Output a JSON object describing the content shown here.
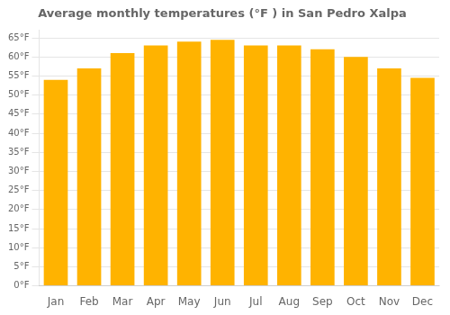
{
  "chart_data": {
    "type": "bar",
    "title": "Average monthly temperatures (°F ) in San Pedro Xalpa",
    "categories": [
      "Jan",
      "Feb",
      "Mar",
      "Apr",
      "May",
      "Jun",
      "Jul",
      "Aug",
      "Sep",
      "Oct",
      "Nov",
      "Dec"
    ],
    "values": [
      54,
      57,
      61,
      63,
      64,
      64.5,
      63,
      63,
      62,
      60,
      57,
      54.5
    ],
    "color": "#FFB300",
    "ylim": [
      0,
      67
    ],
    "yticks": [
      {
        "value": 0,
        "label": "0°F"
      },
      {
        "value": 5,
        "label": "5°F"
      },
      {
        "value": 10,
        "label": "10°F"
      },
      {
        "value": 15,
        "label": "15°F"
      },
      {
        "value": 20,
        "label": "20°F"
      },
      {
        "value": 25,
        "label": "25°F"
      },
      {
        "value": 30,
        "label": "30°F"
      },
      {
        "value": 35,
        "label": "35°F"
      },
      {
        "value": 40,
        "label": "40°F"
      },
      {
        "value": 45,
        "label": "45°F"
      },
      {
        "value": 50,
        "label": "50°F"
      },
      {
        "value": 55,
        "label": "55°F"
      },
      {
        "value": 60,
        "label": "60°F"
      },
      {
        "value": 65,
        "label": "65°F"
      }
    ],
    "grid": true
  }
}
